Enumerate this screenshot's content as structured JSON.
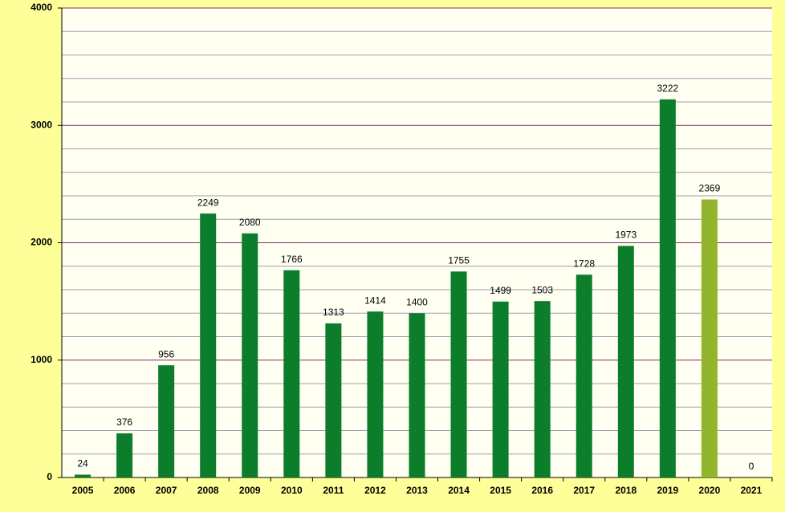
{
  "chart_data": {
    "type": "bar",
    "categories": [
      "2005",
      "2006",
      "2007",
      "2008",
      "2009",
      "2010",
      "2011",
      "2012",
      "2013",
      "2014",
      "2015",
      "2016",
      "2017",
      "2018",
      "2019",
      "2020",
      "2021"
    ],
    "values": [
      24,
      376,
      956,
      2249,
      2080,
      1766,
      1313,
      1414,
      1400,
      1755,
      1499,
      1503,
      1728,
      1973,
      3222,
      2369,
      0
    ],
    "colors": [
      "#0b7d2b",
      "#0b7d2b",
      "#0b7d2b",
      "#0b7d2b",
      "#0b7d2b",
      "#0b7d2b",
      "#0b7d2b",
      "#0b7d2b",
      "#0b7d2b",
      "#0b7d2b",
      "#0b7d2b",
      "#0b7d2b",
      "#0b7d2b",
      "#0b7d2b",
      "#0b7d2b",
      "#93b52e",
      "#0b7d2b"
    ],
    "ylim": [
      0,
      4000
    ],
    "yticks": [
      0,
      1000,
      2000,
      3000,
      4000
    ],
    "minor_yticks": [
      200,
      400,
      600,
      800,
      1200,
      1400,
      1600,
      1800,
      2200,
      2400,
      2600,
      2800,
      3200,
      3400,
      3600,
      3800
    ],
    "grid": true
  }
}
